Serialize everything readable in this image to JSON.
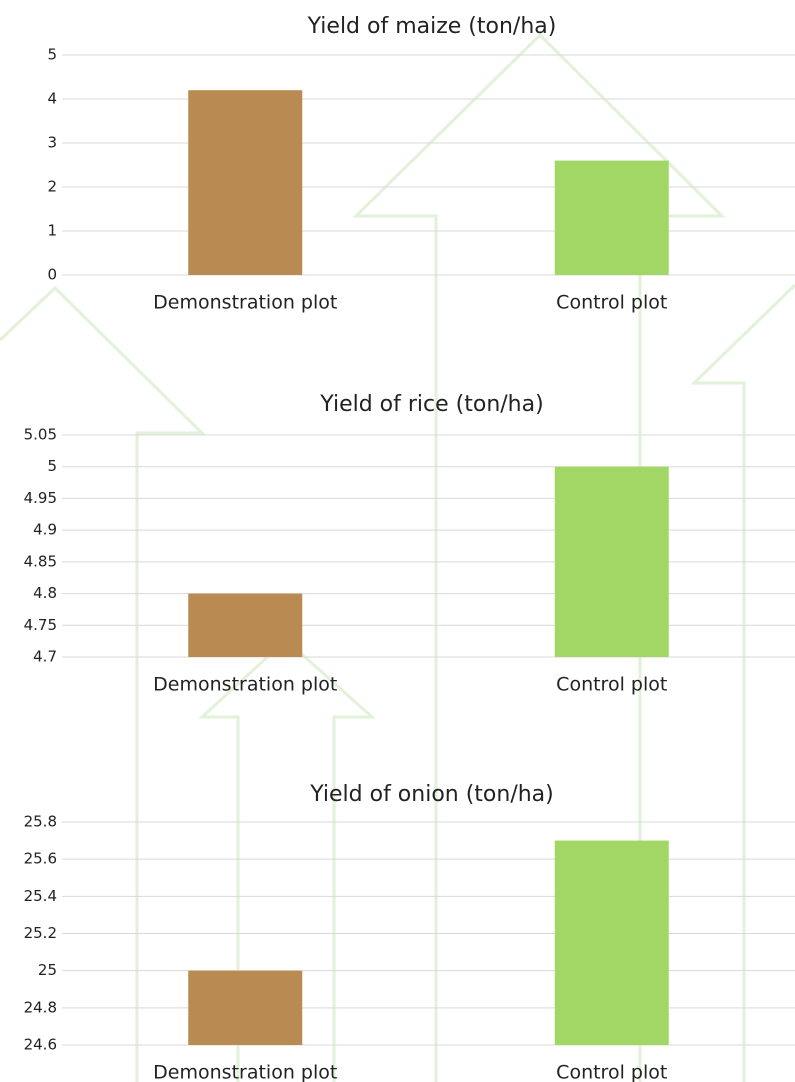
{
  "chart_data": [
    {
      "type": "bar",
      "title": "Yield of maize (ton/ha)",
      "categories": [
        "Demonstration plot",
        "Control plot"
      ],
      "values": [
        4.2,
        2.6
      ],
      "colors": [
        "#b98b52",
        "#a3d765"
      ],
      "ylim": [
        0,
        5
      ],
      "yticks": [
        0,
        1,
        2,
        3,
        4,
        5
      ],
      "grid": true
    },
    {
      "type": "bar",
      "title": "Yield of rice (ton/ha)",
      "categories": [
        "Demonstration plot",
        "Control plot"
      ],
      "values": [
        4.8,
        5.0
      ],
      "colors": [
        "#b98b52",
        "#a3d765"
      ],
      "ylim": [
        4.7,
        5.05
      ],
      "yticks": [
        4.7,
        4.75,
        4.8,
        4.85,
        4.9,
        4.95,
        5,
        5.05
      ],
      "grid": true
    },
    {
      "type": "bar",
      "title": "Yield of onion (ton/ha)",
      "categories": [
        "Demonstration plot",
        "Control plot"
      ],
      "values": [
        25.0,
        25.7
      ],
      "colors": [
        "#b98b52",
        "#a3d765"
      ],
      "ylim": [
        24.6,
        25.8
      ],
      "yticks": [
        24.6,
        24.8,
        25,
        25.2,
        25.4,
        25.6,
        25.8
      ],
      "grid": true
    }
  ]
}
